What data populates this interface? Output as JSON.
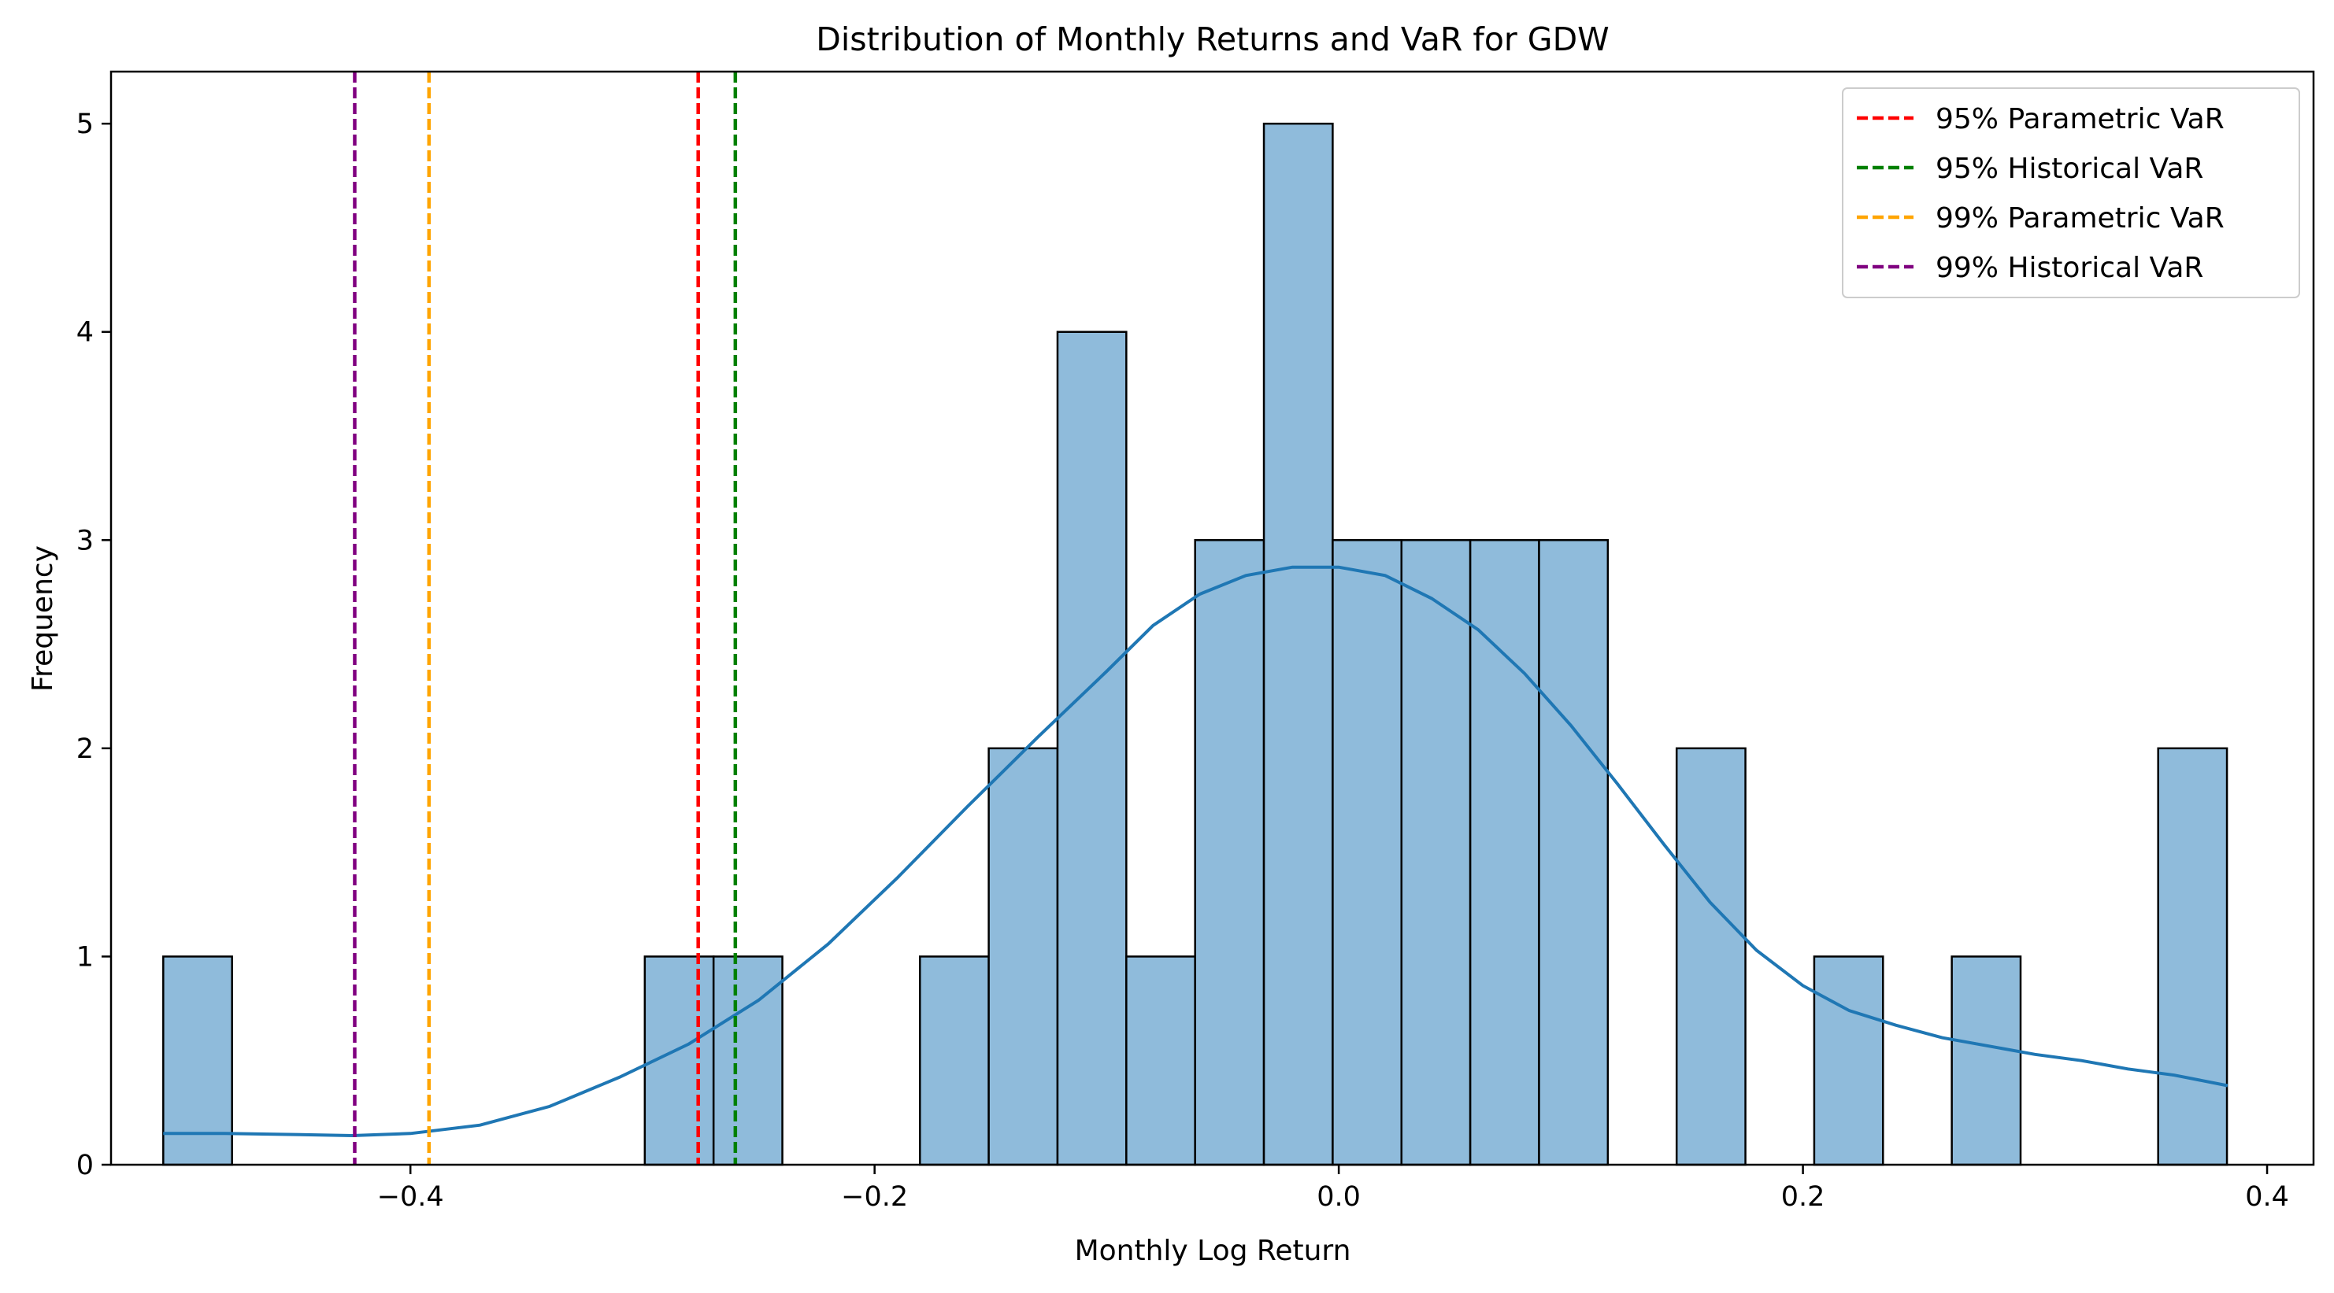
{
  "chart_data": {
    "type": "bar",
    "title": "Distribution of Monthly Returns and VaR for GDW",
    "xlabel": "Monthly Log Return",
    "ylabel": "Frequency",
    "xlim": [
      -0.529,
      0.42
    ],
    "ylim": [
      0,
      5.25
    ],
    "xticks": [
      -0.4,
      -0.2,
      0.0,
      0.2,
      0.4
    ],
    "xtick_labels": [
      "−0.4",
      "−0.2",
      "0.0",
      "0.2",
      "0.4"
    ],
    "yticks": [
      0,
      1,
      2,
      3,
      4,
      5
    ],
    "ytick_labels": [
      "0",
      "1",
      "2",
      "3",
      "4",
      "5"
    ],
    "grid": false,
    "legend_position": "top-right",
    "colors": {
      "bar_fill": "#8fbbdb",
      "bar_edge": "#000000",
      "kde_line": "#1f77b4",
      "p95_param": "#ff0000",
      "p95_hist": "#008000",
      "p99_param": "#ffa500",
      "p99_hist": "#800080"
    },
    "histogram": {
      "bin_start": -0.5065,
      "bin_width": 0.02964,
      "counts": [
        1,
        0,
        0,
        0,
        0,
        0,
        0,
        1,
        1,
        0,
        0,
        1,
        2,
        4,
        1,
        3,
        5,
        3,
        3,
        3,
        3,
        0,
        2,
        0,
        1,
        0,
        1,
        0,
        0,
        2
      ]
    },
    "kde": {
      "name": "",
      "x": [
        -0.5065,
        -0.48,
        -0.45,
        -0.425,
        -0.4,
        -0.37,
        -0.34,
        -0.31,
        -0.28,
        -0.25,
        -0.22,
        -0.19,
        -0.16,
        -0.13,
        -0.1,
        -0.08,
        -0.06,
        -0.04,
        -0.02,
        0.0,
        0.02,
        0.04,
        0.06,
        0.08,
        0.1,
        0.12,
        0.14,
        0.16,
        0.18,
        0.2,
        0.22,
        0.24,
        0.26,
        0.28,
        0.3,
        0.32,
        0.34,
        0.36,
        0.383
      ],
      "y": [
        0.15,
        0.15,
        0.145,
        0.14,
        0.15,
        0.19,
        0.28,
        0.42,
        0.58,
        0.79,
        1.06,
        1.38,
        1.72,
        2.05,
        2.37,
        2.59,
        2.74,
        2.83,
        2.87,
        2.87,
        2.83,
        2.72,
        2.57,
        2.36,
        2.11,
        1.83,
        1.54,
        1.26,
        1.03,
        0.86,
        0.74,
        0.67,
        0.61,
        0.57,
        0.53,
        0.5,
        0.46,
        0.43,
        0.38
      ]
    },
    "var_lines": [
      {
        "name": "95% Parametric VaR",
        "x": -0.276,
        "color": "#ff0000"
      },
      {
        "name": "95% Historical VaR",
        "x": -0.26,
        "color": "#008000"
      },
      {
        "name": "99% Parametric VaR",
        "x": -0.392,
        "color": "#ffa500"
      },
      {
        "name": "99% Historical VaR",
        "x": -0.424,
        "color": "#800080"
      }
    ],
    "legend": [
      "95% Parametric VaR",
      "95% Historical VaR",
      "99% Parametric VaR",
      "99% Historical VaR"
    ]
  }
}
